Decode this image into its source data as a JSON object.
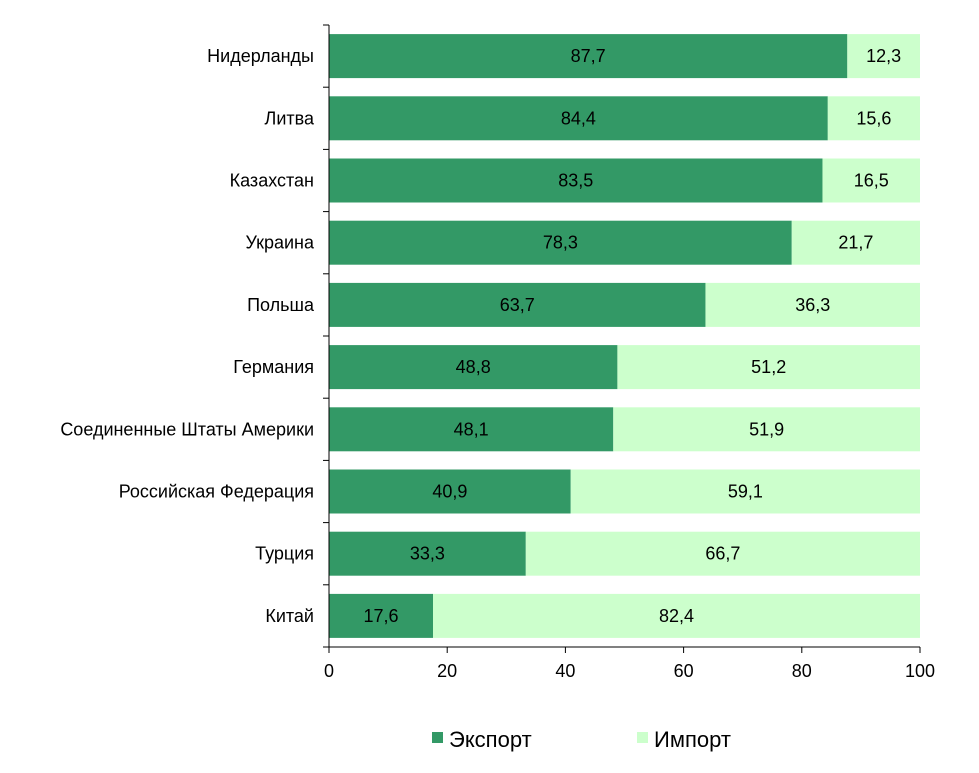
{
  "chart_data": {
    "type": "bar",
    "orientation": "horizontal",
    "stacked": true,
    "categories": [
      "Нидерланды",
      "Литва",
      "Казахстан",
      "Украина",
      "Польша",
      "Германия",
      "Соединенные  Штаты Америки",
      "Российская  Федерация",
      "Турция",
      "Китай"
    ],
    "series": [
      {
        "name": "Экспорт",
        "color": "#339966",
        "values": [
          87.7,
          84.4,
          83.5,
          78.3,
          63.7,
          48.8,
          48.1,
          40.9,
          33.3,
          17.6
        ],
        "labels": [
          "87,7",
          "84,4",
          "83,5",
          "78,3",
          "63,7",
          "48,8",
          "48,1",
          "40,9",
          "33,3",
          "17,6"
        ]
      },
      {
        "name": "Импорт",
        "color": "#ccffcc",
        "values": [
          12.3,
          15.6,
          16.5,
          21.7,
          36.3,
          51.2,
          51.9,
          59.1,
          66.7,
          82.4
        ],
        "labels": [
          "12,3",
          "15,6",
          "16,5",
          "21,7",
          "36,3",
          "51,2",
          "51,9",
          "59,1",
          "66,7",
          "82,4"
        ]
      }
    ],
    "xlim": [
      0,
      100
    ],
    "xticks": [
      0,
      20,
      40,
      60,
      80,
      100
    ],
    "xtick_labels": [
      "0",
      "20",
      "40",
      "60",
      "80",
      "100"
    ],
    "title": "",
    "xlabel": "",
    "ylabel": "",
    "grid": false,
    "legend_position": "bottom-center"
  }
}
